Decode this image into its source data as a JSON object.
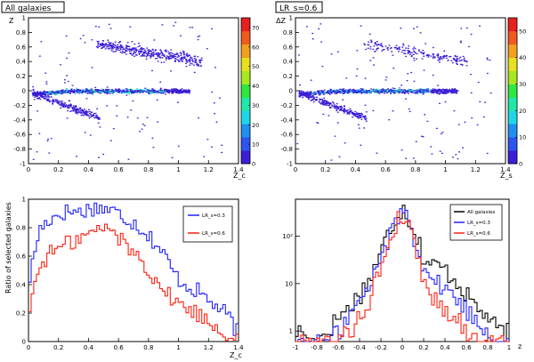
{
  "chart_data": [
    {
      "type": "heatmap",
      "title": "All galaxies",
      "xlabel": "Z_c",
      "ylabel": "Z",
      "xlim": [
        0,
        1.4
      ],
      "ylim": [
        -1,
        1
      ],
      "x_ticks": [
        "0",
        "0.2",
        "0.4",
        "0.6",
        "0.8",
        "1",
        "1.2",
        "1.4"
      ],
      "y_ticks": [
        "-1",
        "-0.8",
        "-0.6",
        "-0.4",
        "-0.2",
        "0",
        "0.2",
        "0.4",
        "0.6",
        "0.8",
        "1"
      ],
      "colorbar": {
        "ticks": [
          "0",
          "10",
          "20",
          "30",
          "40",
          "50",
          "60",
          "70"
        ],
        "max": 75
      }
    },
    {
      "type": "heatmap",
      "title": "LR_s=0.6",
      "xlabel": "Z_s",
      "ylabel": "ΔZ",
      "xlim": [
        0,
        1.4
      ],
      "ylim": [
        -1,
        1
      ],
      "x_ticks": [
        "0",
        "0.2",
        "0.4",
        "0.6",
        "0.8",
        "1",
        "1.2",
        "1.4"
      ],
      "y_ticks": [
        "-1",
        "-0.8",
        "-0.6",
        "-0.4",
        "-0.2",
        "0",
        "0.2",
        "0.4",
        "0.6",
        "0.8",
        "1"
      ],
      "colorbar": {
        "ticks": [
          "0",
          "10",
          "20",
          "30",
          "40",
          "50"
        ],
        "max": 55
      }
    },
    {
      "type": "line",
      "xlabel": "Z_c",
      "ylabel": "Ratio of selected galaxies",
      "xlim": [
        0,
        1.4
      ],
      "ylim": [
        0,
        1
      ],
      "x_ticks": [
        "0",
        "0.2",
        "0.4",
        "0.6",
        "0.8",
        "1",
        "1.2",
        "1.4"
      ],
      "y_ticks": [
        "0",
        "0.2",
        "0.4",
        "0.6",
        "0.8",
        "1"
      ],
      "legend": [
        "LR_s=0.3",
        "LR_s=0.6"
      ],
      "series": [
        {
          "name": "LR_s=0.3",
          "color": "#2020ff",
          "x": [
            0.0,
            0.07,
            0.14,
            0.21,
            0.28,
            0.35,
            0.42,
            0.49,
            0.56,
            0.63,
            0.7,
            0.77,
            0.84,
            0.91,
            0.98,
            1.05,
            1.12,
            1.19,
            1.26,
            1.33,
            1.4
          ],
          "values": [
            0.4,
            0.78,
            0.86,
            0.9,
            0.92,
            0.91,
            0.94,
            0.94,
            0.92,
            0.88,
            0.84,
            0.78,
            0.7,
            0.6,
            0.46,
            0.4,
            0.36,
            0.3,
            0.24,
            0.18,
            0.05
          ]
        },
        {
          "name": "LR_s=0.6",
          "color": "#ff2010",
          "x": [
            0.0,
            0.07,
            0.14,
            0.21,
            0.28,
            0.35,
            0.42,
            0.49,
            0.56,
            0.63,
            0.7,
            0.77,
            0.84,
            0.91,
            0.98,
            1.05,
            1.12,
            1.19,
            1.26,
            1.33,
            1.4
          ],
          "values": [
            0.2,
            0.52,
            0.62,
            0.66,
            0.7,
            0.73,
            0.76,
            0.8,
            0.78,
            0.7,
            0.63,
            0.55,
            0.45,
            0.35,
            0.28,
            0.24,
            0.2,
            0.15,
            0.1,
            0.05,
            0.03
          ]
        }
      ]
    },
    {
      "type": "line",
      "xlabel": "z",
      "ylabel": "",
      "xlim": [
        -1,
        1
      ],
      "yscale": "log",
      "ylim": [
        0.6,
        600
      ],
      "x_ticks": [
        "-1",
        "-0.8",
        "-0.6",
        "-0.4",
        "-0.2",
        "0",
        "0.2",
        "0.4",
        "0.6",
        "0.8",
        "1"
      ],
      "y_ticks": [
        "1",
        "10",
        "10²"
      ],
      "legend": [
        "All galaxies",
        "LR_s=0.3",
        "LR_s=0.6"
      ],
      "series": [
        {
          "name": "All galaxies",
          "color": "#000000",
          "x": [
            -0.9,
            -0.8,
            -0.7,
            -0.6,
            -0.5,
            -0.4,
            -0.3,
            -0.2,
            -0.1,
            0.0,
            0.1,
            0.2,
            0.3,
            0.4,
            0.5,
            0.6,
            0.7,
            0.8,
            0.9
          ],
          "values": [
            0.6,
            0.6,
            1.0,
            2.0,
            3.0,
            6.0,
            12.0,
            40.0,
            150.0,
            420.0,
            140.0,
            30.0,
            25.0,
            20.0,
            12.0,
            6.0,
            3.0,
            2.0,
            1.0
          ]
        },
        {
          "name": "LR_s=0.3",
          "color": "#2020ff",
          "x": [
            -0.9,
            -0.8,
            -0.7,
            -0.6,
            -0.5,
            -0.4,
            -0.3,
            -0.2,
            -0.1,
            0.0,
            0.1,
            0.2,
            0.3,
            0.4,
            0.5,
            0.6,
            0.7,
            0.8,
            0.9
          ],
          "values": [
            0.6,
            0.6,
            0.6,
            1.0,
            2.0,
            4.0,
            8.0,
            30.0,
            120.0,
            380.0,
            110.0,
            20.0,
            12.0,
            8.0,
            5.0,
            3.0,
            1.5,
            1.0,
            0.6
          ]
        },
        {
          "name": "LR_s=0.6",
          "color": "#ff2010",
          "x": [
            -0.9,
            -0.8,
            -0.7,
            -0.6,
            -0.5,
            -0.4,
            -0.3,
            -0.2,
            -0.1,
            0.0,
            0.1,
            0.2,
            0.3,
            0.4,
            0.5,
            0.6,
            0.7,
            0.8,
            0.9
          ],
          "values": [
            0.6,
            0.6,
            0.6,
            0.6,
            1.0,
            2.0,
            4.0,
            20.0,
            90.0,
            320.0,
            80.0,
            10.0,
            5.0,
            3.0,
            2.0,
            1.0,
            0.6,
            0.6,
            0.6
          ]
        }
      ]
    }
  ]
}
